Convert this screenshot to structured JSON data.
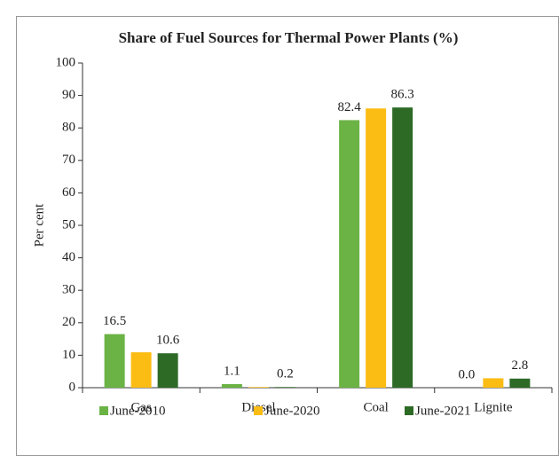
{
  "chart_data": {
    "type": "bar",
    "title": "Share of Fuel Sources for Thermal Power Plants (%)",
    "y_label": "Per cent",
    "categories": [
      "Gas",
      "Diesel",
      "Coal",
      "Lignite"
    ],
    "series": [
      {
        "name": "June-2010",
        "color": "#6ab344",
        "values": [
          16.5,
          1.1,
          82.4,
          0
        ],
        "value_labels": [
          "16.5",
          "1.1",
          "82.4",
          "0.0"
        ]
      },
      {
        "name": "June-2020",
        "color": "#fbbc14",
        "values": [
          10.9,
          0.2,
          86.0,
          2.9
        ]
      },
      {
        "name": "June-2021",
        "color": "#2d6a26",
        "values": [
          10.6,
          0.2,
          86.3,
          2.8
        ],
        "value_labels": [
          "10.6",
          "0.2",
          "86.3",
          "2.8"
        ]
      }
    ],
    "ylim": [
      0,
      100
    ],
    "yticks": [
      0,
      10,
      20,
      30,
      40,
      50,
      60,
      70,
      80,
      90,
      100
    ],
    "legend": "bottom"
  }
}
